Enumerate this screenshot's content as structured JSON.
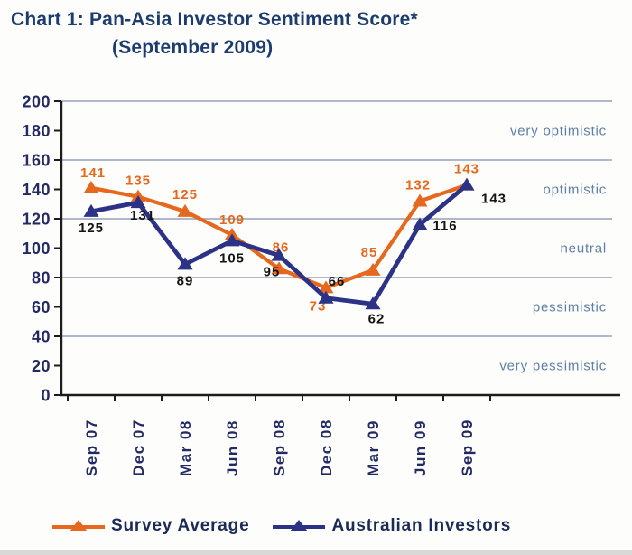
{
  "title": {
    "line1": "Chart 1: Pan-Asia Investor Sentiment Score*",
    "line2": "(September 2009)"
  },
  "chart_data": {
    "type": "line",
    "title": "Chart 1: Pan-Asia Investor Sentiment Score* (September 2009)",
    "categories": [
      "Sep 07",
      "Dec 07",
      "Mar 08",
      "Jun 08",
      "Sep 08",
      "Dec 08",
      "Mar 09",
      "Jun 09",
      "Sep 09"
    ],
    "series": [
      {
        "name": "Survey Average",
        "color": "#E5681E",
        "values": [
          141,
          135,
          125,
          109,
          86,
          73,
          85,
          132,
          143
        ],
        "label_color": "#E5681E",
        "label_offsets": [
          [
            2,
            -12
          ],
          [
            0,
            -13
          ],
          [
            0,
            -14
          ],
          [
            0,
            -12
          ],
          [
            2,
            -19
          ],
          [
            -9,
            25
          ],
          [
            -4,
            -15
          ],
          [
            -2,
            -13
          ],
          [
            0,
            -13
          ]
        ]
      },
      {
        "name": "Australian Investors",
        "color": "#2C3286",
        "values": [
          125,
          131,
          89,
          105,
          95,
          66,
          62,
          116,
          143
        ],
        "label_color": "#141414",
        "label_offsets": [
          [
            0,
            23
          ],
          [
            5,
            19
          ],
          [
            0,
            23
          ],
          [
            0,
            24
          ],
          [
            -8,
            23
          ],
          [
            12,
            -14
          ],
          [
            4,
            21
          ],
          [
            28,
            6
          ],
          [
            30,
            20
          ]
        ]
      }
    ],
    "xlabel": "",
    "ylabel": "",
    "ylim": [
      0,
      200
    ],
    "ytick_step": 20,
    "grid_step": 40,
    "grid": true,
    "band_labels": [
      "very optimistic",
      "optimistic",
      "neutral",
      "pessimistic",
      "very pessimistic"
    ],
    "legend_position": "bottom"
  },
  "colors": {
    "axis": "#1C1C1C",
    "grid": "#94A2B8",
    "band_label": "#5F7FA6",
    "axis_label": "#232A63",
    "title": "#1C3B6E"
  }
}
